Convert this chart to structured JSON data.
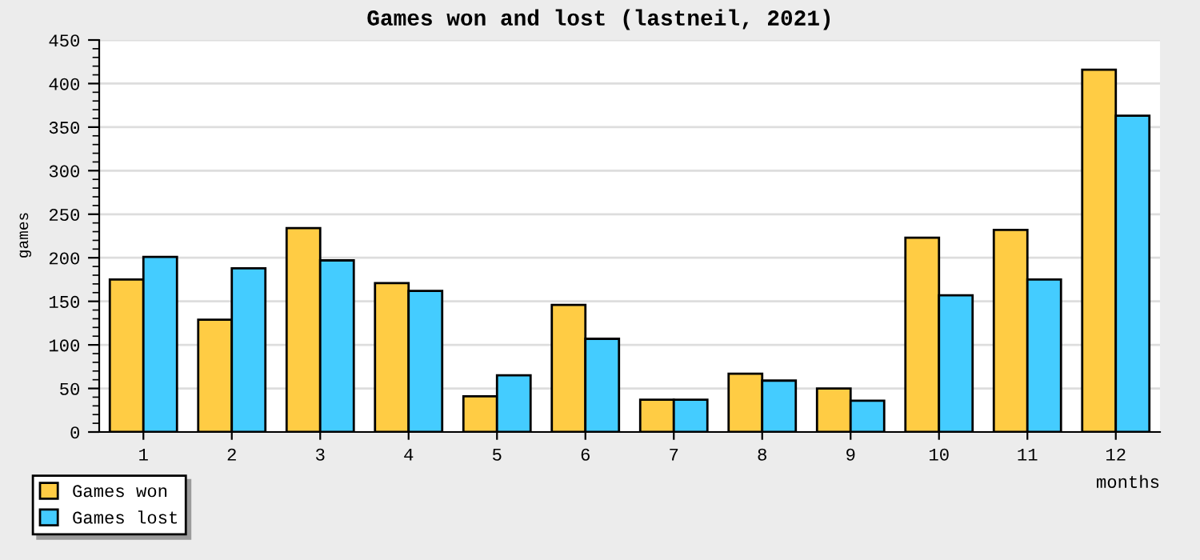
{
  "chart_data": {
    "type": "bar",
    "title": "Games won and lost (lastneil, 2021)",
    "xlabel": "months",
    "ylabel": "games",
    "categories": [
      "1",
      "2",
      "3",
      "4",
      "5",
      "6",
      "7",
      "8",
      "9",
      "10",
      "11",
      "12"
    ],
    "series": [
      {
        "name": "Games won",
        "color": "#ffcc44",
        "values": [
          175,
          129,
          234,
          171,
          41,
          146,
          37,
          67,
          50,
          223,
          232,
          416
        ]
      },
      {
        "name": "Games lost",
        "color": "#44ccff",
        "values": [
          201,
          188,
          197,
          162,
          65,
          107,
          37,
          59,
          36,
          157,
          175,
          363
        ]
      }
    ],
    "ylim": [
      0,
      450
    ],
    "yticks": [
      0,
      50,
      100,
      150,
      200,
      250,
      300,
      350,
      400,
      450
    ],
    "grid": "y",
    "legend": "bottom left"
  }
}
